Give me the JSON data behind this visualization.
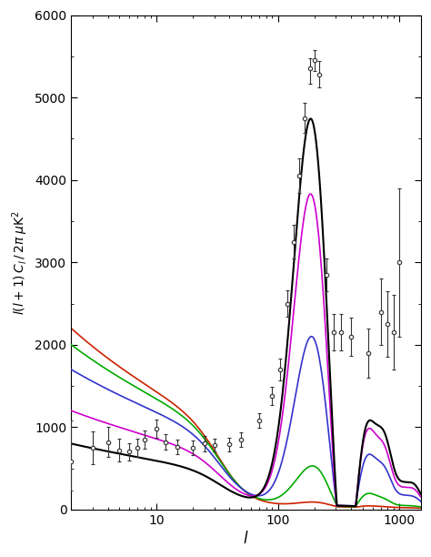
{
  "xlabel": "l",
  "ylabel": "l(l+1) C_l / 2π μK²",
  "xlim": [
    2,
    1500
  ],
  "ylim": [
    0,
    6000
  ],
  "yticks": [
    0,
    1000,
    2000,
    3000,
    4000,
    5000,
    6000
  ],
  "xticks_major": [
    10,
    100,
    1000
  ],
  "colors": {
    "black": "#000000",
    "magenta": "#cc00cc",
    "blue": "#3333cc",
    "green": "#00aa00",
    "red": "#cc2200"
  },
  "obs_l": [
    2,
    3,
    4,
    5,
    6,
    7,
    8,
    10,
    12,
    15,
    20,
    25,
    30,
    40,
    50,
    70,
    90,
    105,
    120,
    135,
    150,
    165,
    185,
    200,
    220,
    250,
    290,
    330,
    400,
    550,
    700,
    800,
    900,
    1000
  ],
  "obs_cl": [
    580,
    750,
    820,
    720,
    700,
    750,
    850,
    980,
    820,
    760,
    750,
    800,
    780,
    790,
    850,
    1080,
    1380,
    1700,
    2500,
    3250,
    4050,
    4750,
    5350,
    5450,
    5280,
    2850,
    2150,
    2150,
    2100,
    1900,
    2400,
    2250,
    2150,
    3000
  ],
  "obs_errlo": [
    350,
    200,
    180,
    140,
    110,
    110,
    110,
    110,
    90,
    90,
    90,
    90,
    80,
    80,
    85,
    90,
    110,
    130,
    160,
    200,
    210,
    180,
    180,
    130,
    160,
    200,
    220,
    220,
    230,
    300,
    400,
    400,
    450,
    900
  ],
  "obs_errhi": [
    500,
    200,
    180,
    140,
    110,
    110,
    110,
    110,
    90,
    90,
    90,
    90,
    80,
    80,
    85,
    90,
    110,
    130,
    160,
    200,
    210,
    180,
    130,
    130,
    160,
    200,
    220,
    220,
    230,
    300,
    400,
    400,
    450,
    900
  ],
  "curves": {
    "black": {
      "l2_val": 800,
      "l2_slope": -0.18,
      "p1a": 5200,
      "p1l": 200,
      "p2a": 2700,
      "p2l": 540,
      "p3a": 2500,
      "p3l": 810,
      "damp": 1500,
      "trough_depth": 0.12
    },
    "magenta": {
      "l2_val": 1200,
      "l2_slope": -0.2,
      "p1a": 4200,
      "p1l": 200,
      "p2a": 2400,
      "p2l": 540,
      "p3a": 2100,
      "p3l": 810,
      "damp": 1450,
      "trough_depth": 0.08
    },
    "blue": {
      "l2_val": 1700,
      "l2_slope": -0.22,
      "p1a": 2300,
      "p1l": 205,
      "p2a": 1600,
      "p2l": 545,
      "p3a": 1400,
      "p3l": 815,
      "damp": 1350,
      "trough_depth": 0.06
    },
    "green": {
      "l2_val": 2000,
      "l2_slope": -0.24,
      "p1a": 550,
      "p1l": 210,
      "p2a": 420,
      "p2l": 550,
      "p3a": 320,
      "p3l": 820,
      "damp": 1200,
      "trough_depth": 0.04
    },
    "red": {
      "l2_val": 2200,
      "l2_slope": -0.26,
      "p1a": 60,
      "p1l": 215,
      "p2a": 50,
      "p2l": 555,
      "p3a": 40,
      "p3l": 825,
      "damp": 1100,
      "trough_depth": 0.03
    }
  }
}
